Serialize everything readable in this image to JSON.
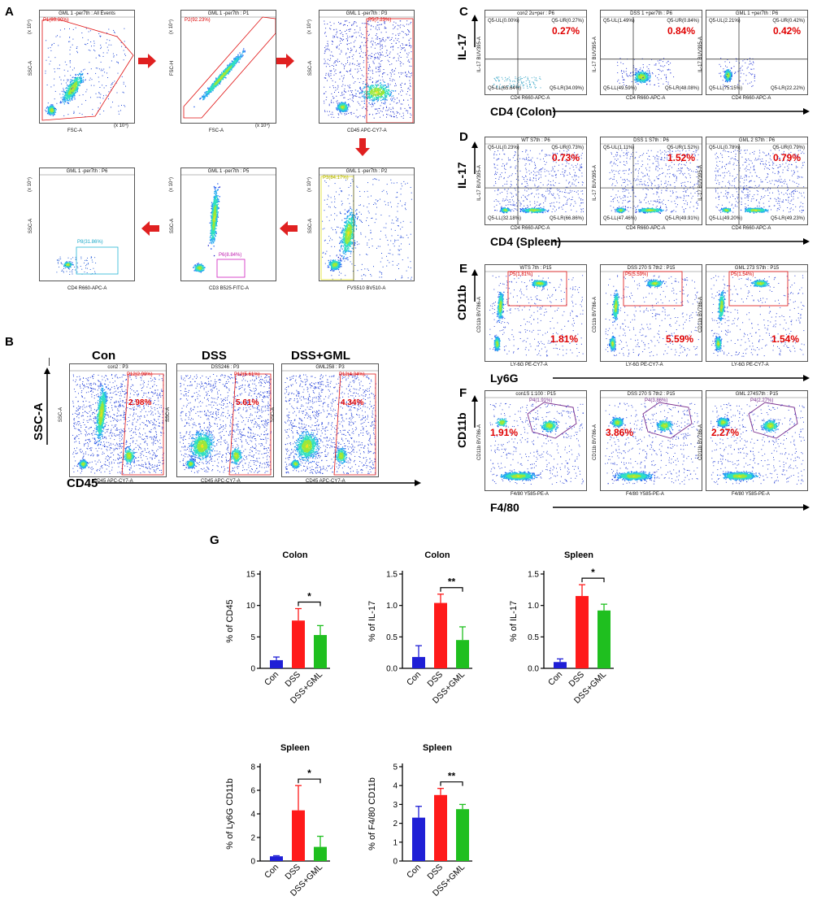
{
  "panels": {
    "A": {
      "letter": "A",
      "plots": [
        {
          "title": "GML 1 -per7th : All Events",
          "gate": "P1(93.30%)",
          "xlabel": "FSC-A",
          "ylabel": "SSC-A",
          "xunit": "(x 10⁴)",
          "yunit": "(x 10⁴)"
        },
        {
          "title": "GML 1 -per7th : P1",
          "gate": "P2(92.23%)",
          "xlabel": "FSC-A",
          "ylabel": "FSC-H",
          "xunit": "(x 10⁴)",
          "yunit": "(x 10⁴)"
        },
        {
          "title": "GML 1 -per7th : P3",
          "gate": "P5(7.23%)",
          "xlabel": "CD45 APC-CY7-A",
          "ylabel": "SSC-A",
          "yunit": "(x 10⁴)"
        },
        {
          "title": "GML 1 -per7th : P2",
          "gate": "P3(84.17%)",
          "xlabel": "FVS510 BV510-A",
          "ylabel": "SSC-A",
          "yunit": "(x 10⁴)"
        },
        {
          "title": "GML 1 -per7th : P5",
          "gate": "P6(8.84%)",
          "xlabel": "CD3 B525-FITC-A",
          "ylabel": "SSC-A",
          "yunit": "(x 10⁴)"
        },
        {
          "title": "GML 1 -per7th : P6",
          "gate": "P8(31.86%)",
          "xlabel": "CD4 R660-APC-A",
          "ylabel": "SSC-A",
          "yunit": "(x 10⁴)"
        }
      ]
    },
    "B": {
      "letter": "B",
      "groups": [
        "Con",
        "DSS",
        "DSS+GML"
      ],
      "yaxis": "SSC-A",
      "xaxis": "CD45",
      "plots": [
        {
          "title": "con2 : P3",
          "gate": "P12(2.98%)",
          "pct": "2.98%",
          "xlabel": "CD45 APC-CY7-A",
          "ylabel": "SSC-A"
        },
        {
          "title": "DSS246 : P3",
          "gate": "P12(5.61%)",
          "pct": "5.61%",
          "xlabel": "CD45 APC-CY7-A",
          "ylabel": "SSC-A"
        },
        {
          "title": "GML258 : P3",
          "gate": "P12(4.34%)",
          "pct": "4.34%",
          "xlabel": "CD45 APC-CY7-A",
          "ylabel": "SSC-A"
        }
      ]
    },
    "C": {
      "letter": "C",
      "yaxis": "IL-17",
      "xaxis": "CD4 (Colon)",
      "plots": [
        {
          "title": "con2 2u+per : P6",
          "pct": "0.27%",
          "ul": "Q5-UL(0.00%)",
          "ur": "Q5-UR(0.27%)",
          "ll": "Q5-LL(65.64%)",
          "lr": "Q5-LR(34.09%)",
          "xlabel": "CD4 R660-APC-A",
          "ylabel": "IL-17 BUV395-A"
        },
        {
          "title": "DSS 1 +per7th : P6",
          "pct": "0.84%",
          "ul": "Q5-UL(1.49%)",
          "ur": "Q5-UR(0.84%)",
          "ll": "Q5-LL(49.59%)",
          "lr": "Q5-LR(48.08%)",
          "xlabel": "CD4 R660-APC-A",
          "ylabel": "IL-17 BUV395-A"
        },
        {
          "title": "GML 1 +per7th : P6",
          "pct": "0.42%",
          "ul": "Q5-UL(2.21%)",
          "ur": "Q5-UR(0.42%)",
          "ll": "Q5-LL(75.15%)",
          "lr": "Q5-LR(22.22%)",
          "xlabel": "CD4 R660-APC-A",
          "ylabel": "IL-17 BUV395-A"
        }
      ]
    },
    "D": {
      "letter": "D",
      "yaxis": "IL-17",
      "xaxis": "CD4 (Spleen)",
      "plots": [
        {
          "title": "WT S7th : P6",
          "pct": "0.73%",
          "ul": "Q5-UL(0.23%)",
          "ur": "Q5-UR(0.73%)",
          "ll": "Q5-LL(32.18%)",
          "lr": "Q5-LR(66.86%)",
          "xlabel": "CD4 R660-APC-A",
          "ylabel": "IL-17 BUV395-A"
        },
        {
          "title": "DSS 1 S7th : P6",
          "pct": "1.52%",
          "ul": "Q5-UL(1.11%)",
          "ur": "Q5-UR(1.52%)",
          "ll": "Q5-LL(47.46%)",
          "lr": "Q5-LR(49.91%)",
          "xlabel": "CD4 R660-APC-A",
          "ylabel": "IL-17 BUV395-A"
        },
        {
          "title": "GML 2 S7th : P6",
          "pct": "0.79%",
          "ul": "Q5-UL(0.78%)",
          "ur": "Q5-UR(0.79%)",
          "ll": "Q5-LL(49.20%)",
          "lr": "Q5-LR(49.23%)",
          "xlabel": "CD4 R660-APC-A",
          "ylabel": "IL-17 BUV395-A"
        }
      ]
    },
    "E": {
      "letter": "E",
      "yaxis": "CD11b",
      "xaxis": "Ly6G",
      "plots": [
        {
          "title": "WTS 7th : P15",
          "gate": "P5(1.81%)",
          "pct": "1.81%",
          "xlabel": "LY-6G PE-CY7-A",
          "ylabel": "CD11b BV786-A"
        },
        {
          "title": "DSS 270 S 7th2 : P15",
          "gate": "P5(5.59%)",
          "pct": "5.59%",
          "xlabel": "LY-6G PE-CY7-A",
          "ylabel": "CD11b BV786-A"
        },
        {
          "title": "GML 273 S7th : P15",
          "gate": "P5(1.54%)",
          "pct": "1.54%",
          "xlabel": "LY-6G PE-CY7-A",
          "ylabel": "CD11b BV786-A"
        }
      ]
    },
    "F": {
      "letter": "F",
      "yaxis": "CD11b",
      "xaxis": "F4/80",
      "plots": [
        {
          "title": "con1S 1:100 : P15",
          "gate": "P4(1.91%)",
          "pct": "1.91%",
          "xlabel": "F4/80 Y585-PE-A",
          "ylabel": "CD11b BV786-A"
        },
        {
          "title": "DSS 270 S 7th2 : P15",
          "gate": "P4(3.86%)",
          "pct": "3.86%",
          "xlabel": "F4/80 Y585-PE-A",
          "ylabel": "CD11b BV786-A"
        },
        {
          "title": "GML 274S7th : P15",
          "gate": "P4(2.27%)",
          "pct": "2.27%",
          "xlabel": "F4/80 Y585-PE-A",
          "ylabel": "CD11b BV786-A"
        }
      ]
    },
    "G": {
      "letter": "G"
    }
  },
  "colors": {
    "con": "#1f1fd6",
    "dss": "#ff1a1a",
    "gml": "#1fbf1f",
    "gate_red": "#e01010",
    "gate_purple": "#7a2f8f",
    "gate_cyan": "#27b6d6",
    "gate_magenta": "#d01fbf"
  },
  "chart_data": [
    {
      "type": "bar",
      "title": "Colon",
      "ylabel": "% of CD45",
      "categories": [
        "Con",
        "DSS",
        "DSS+GML"
      ],
      "values": [
        1.3,
        7.6,
        5.3
      ],
      "errors": [
        0.5,
        1.9,
        1.5
      ],
      "ylim": [
        0,
        15
      ],
      "ticks": [
        0,
        5,
        10,
        15
      ],
      "significance": "*"
    },
    {
      "type": "bar",
      "title": "Colon",
      "ylabel": "% of IL-17",
      "categories": [
        "Con",
        "DSS",
        "DSS+GML"
      ],
      "values": [
        0.18,
        1.04,
        0.45
      ],
      "errors": [
        0.18,
        0.14,
        0.21
      ],
      "ylim": [
        0,
        1.5
      ],
      "ticks": [
        0.0,
        0.5,
        1.0,
        1.5
      ],
      "significance": "**"
    },
    {
      "type": "bar",
      "title": "Spleen",
      "ylabel": "% of IL-17",
      "categories": [
        "Con",
        "DSS",
        "DSS+GML"
      ],
      "values": [
        0.1,
        1.15,
        0.92
      ],
      "errors": [
        0.05,
        0.18,
        0.1
      ],
      "ylim": [
        0,
        1.5
      ],
      "ticks": [
        0.0,
        0.5,
        1.0,
        1.5
      ],
      "significance": "*"
    },
    {
      "type": "bar",
      "title": "Spleen",
      "ylabel": "% of Ly6G CD11b",
      "categories": [
        "Con",
        "DSS",
        "DSS+GML"
      ],
      "values": [
        0.4,
        4.3,
        1.2
      ],
      "errors": [
        0.05,
        2.1,
        0.9
      ],
      "ylim": [
        0,
        8
      ],
      "ticks": [
        0,
        2,
        4,
        6,
        8
      ],
      "significance": "*"
    },
    {
      "type": "bar",
      "title": "Spleen",
      "ylabel": "% of F4/80 CD11b",
      "categories": [
        "Con",
        "DSS",
        "DSS+GML"
      ],
      "values": [
        2.3,
        3.5,
        2.75
      ],
      "errors": [
        0.6,
        0.35,
        0.25
      ],
      "ylim": [
        0,
        5
      ],
      "ticks": [
        0,
        1,
        2,
        3,
        4,
        5
      ],
      "significance": "**"
    }
  ]
}
